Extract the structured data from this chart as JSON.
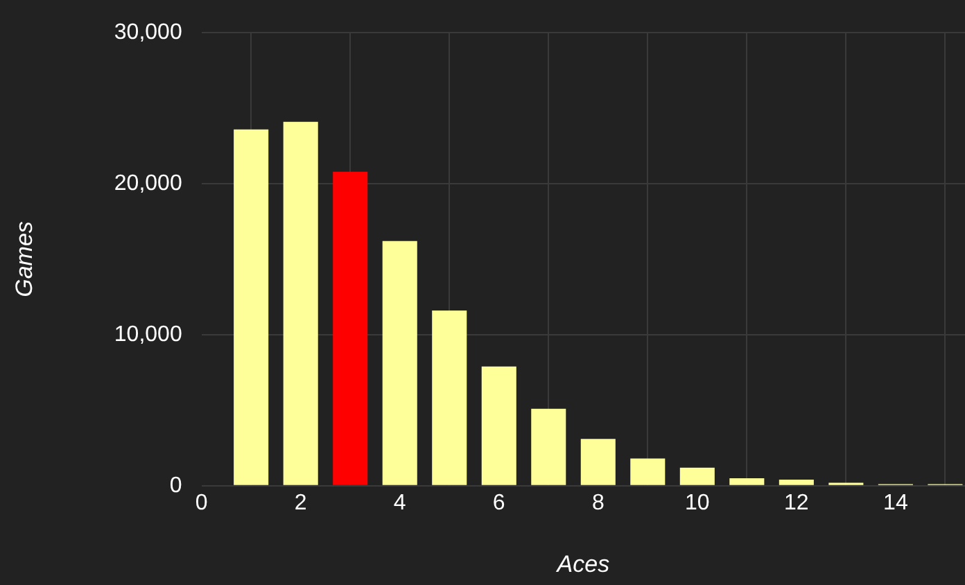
{
  "chart_data": {
    "type": "bar",
    "xlabel": "Aces",
    "ylabel": "Games",
    "x": [
      1,
      2,
      3,
      4,
      5,
      6,
      7,
      8,
      9,
      10,
      11,
      12,
      13,
      14,
      15
    ],
    "values": [
      23600,
      24100,
      20800,
      16200,
      11600,
      7900,
      5100,
      3100,
      1800,
      1200,
      500,
      400,
      200,
      100,
      100
    ],
    "colors": [
      "#ffff99",
      "#ffff99",
      "#ff0000",
      "#ffff99",
      "#ffff99",
      "#ffff99",
      "#ffff99",
      "#ffff99",
      "#ffff99",
      "#ffff99",
      "#ffff99",
      "#ffff99",
      "#ffff99",
      "#ffff99",
      "#ffff99"
    ],
    "xlim": [
      0,
      15.4
    ],
    "xticks": [
      0,
      2,
      4,
      6,
      8,
      10,
      12,
      14
    ],
    "ylim": [
      0,
      30000
    ],
    "yticks": [
      0,
      {
        "value": 10000,
        "label": "10,000"
      },
      {
        "value": 20000,
        "label": "20,000"
      },
      {
        "value": 30000,
        "label": "30,000"
      }
    ],
    "grid": true
  }
}
